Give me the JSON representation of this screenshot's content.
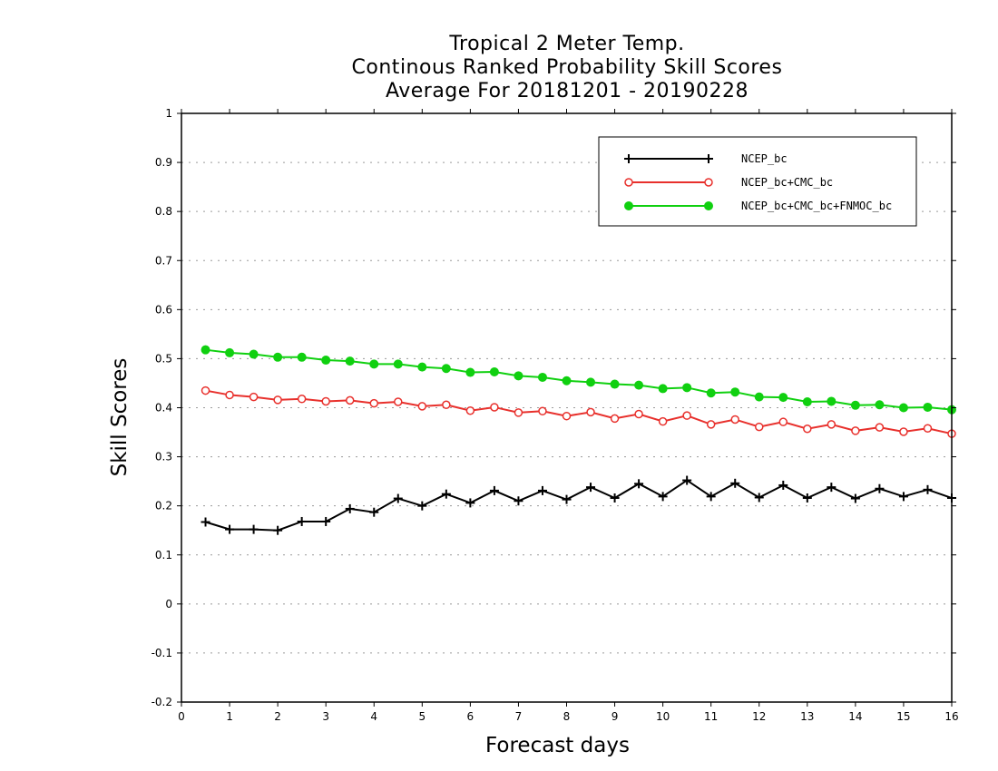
{
  "chart_data": {
    "type": "line",
    "title": "Tropical 2 Meter Temp.",
    "subtitle": "Continous Ranked Probability Skill Scores",
    "subtitle2": "Average For 20181201 - 20190228",
    "xlabel": "Forecast days",
    "ylabel": "Skill Scores",
    "xlim": [
      0,
      16
    ],
    "ylim": [
      -0.2,
      1
    ],
    "x_ticks": [
      0,
      1,
      2,
      3,
      4,
      5,
      6,
      7,
      8,
      9,
      10,
      11,
      12,
      13,
      14,
      15,
      16
    ],
    "x_tick_labels": [
      "0",
      "1",
      "2",
      "3",
      "4",
      "5",
      "6",
      "7",
      "8",
      "9",
      "10",
      "11",
      "12",
      "13",
      "14",
      "15",
      "16"
    ],
    "y_ticks": [
      -0.2,
      -0.1,
      0,
      0.1,
      0.2,
      0.3,
      0.4,
      0.5,
      0.6,
      0.7,
      0.8,
      0.9,
      1
    ],
    "y_tick_labels": [
      "-0.2",
      "-0.1",
      "0",
      "0.1",
      "0.2",
      "0.3",
      "0.4",
      "0.5",
      "0.6",
      "0.7",
      "0.8",
      "0.9",
      "1"
    ],
    "grid": "horizontal dotted",
    "legend_position": "top-right",
    "x": [
      0.5,
      1,
      1.5,
      2,
      2.5,
      3,
      3.5,
      4,
      4.5,
      5,
      5.5,
      6,
      6.5,
      7,
      7.5,
      8,
      8.5,
      9,
      9.5,
      10,
      10.5,
      11,
      11.5,
      12,
      12.5,
      13,
      13.5,
      14,
      14.5,
      15,
      15.5,
      16
    ],
    "series": [
      {
        "name": "NCEP_bc",
        "color": "#000000",
        "marker": "plus",
        "values": [
          0.167,
          0.152,
          0.152,
          0.15,
          0.168,
          0.168,
          0.194,
          0.187,
          0.215,
          0.2,
          0.224,
          0.206,
          0.231,
          0.21,
          0.231,
          0.213,
          0.238,
          0.216,
          0.245,
          0.219,
          0.252,
          0.219,
          0.246,
          0.217,
          0.242,
          0.216,
          0.238,
          0.215,
          0.235,
          0.219,
          0.233,
          0.216
        ]
      },
      {
        "name": "NCEP_bc+CMC_bc",
        "color": "#e8302c",
        "marker": "open-circle",
        "values": [
          0.435,
          0.426,
          0.422,
          0.416,
          0.418,
          0.413,
          0.415,
          0.409,
          0.412,
          0.403,
          0.406,
          0.394,
          0.401,
          0.39,
          0.393,
          0.383,
          0.391,
          0.378,
          0.387,
          0.372,
          0.384,
          0.366,
          0.376,
          0.361,
          0.371,
          0.357,
          0.366,
          0.353,
          0.36,
          0.351,
          0.358,
          0.347
        ]
      },
      {
        "name": "NCEP_bc+CMC_bc+FNMOC_bc",
        "color": "#10d010",
        "marker": "filled-circle",
        "values": [
          0.518,
          0.512,
          0.509,
          0.503,
          0.503,
          0.497,
          0.495,
          0.489,
          0.489,
          0.483,
          0.48,
          0.472,
          0.473,
          0.465,
          0.462,
          0.455,
          0.452,
          0.448,
          0.446,
          0.439,
          0.441,
          0.43,
          0.432,
          0.422,
          0.421,
          0.412,
          0.413,
          0.405,
          0.406,
          0.4,
          0.401,
          0.396
        ]
      }
    ]
  }
}
